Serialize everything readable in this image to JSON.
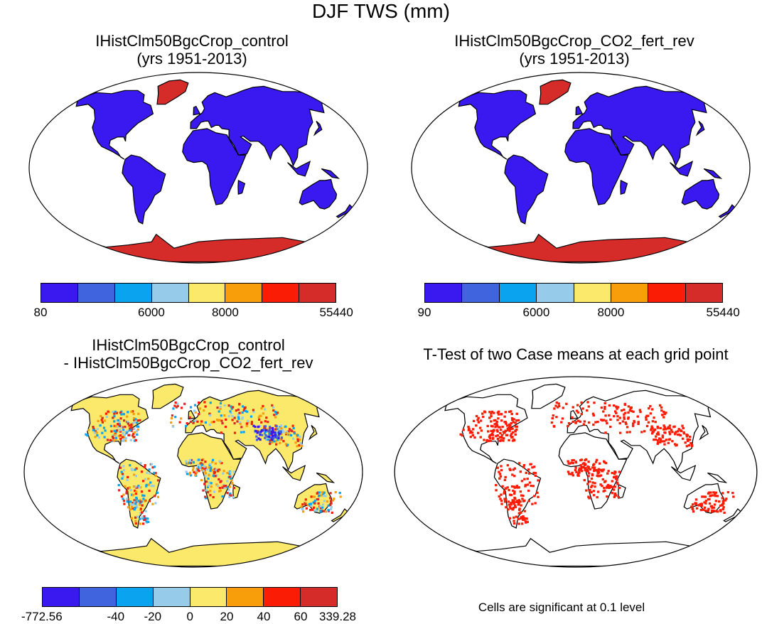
{
  "title": "DJF TWS (mm)",
  "panels": [
    {
      "id": "p1",
      "title": [
        "IHistClm50BgcCrop_control",
        "(yrs 1951-2013)"
      ],
      "mode": "abs"
    },
    {
      "id": "p2",
      "title": [
        "IHistClm50BgcCrop_CO2_fert_rev",
        "(yrs 1951-2013)"
      ],
      "mode": "abs"
    },
    {
      "id": "p3",
      "title": [
        "IHistClm50BgcCrop_control",
        "- IHistClm50BgcCrop_CO2_fert_rev"
      ],
      "mode": "diff"
    },
    {
      "id": "p4",
      "title": [
        "T-Test of two Case means at each grid point"
      ],
      "mode": "sig"
    }
  ],
  "colorbars": [
    {
      "id": "cb1",
      "colors": [
        "#3a19f0",
        "#3f64dd",
        "#0aa3f0",
        "#96cbea",
        "#fbe96b",
        "#f99e0b",
        "#fa1c05",
        "#d52b29"
      ],
      "labels": [
        {
          "text": "80",
          "at": 0
        },
        {
          "text": "6000",
          "at": 3
        },
        {
          "text": "8000",
          "at": 5
        },
        {
          "text": "55440",
          "at": 8
        }
      ]
    },
    {
      "id": "cb2",
      "colors": [
        "#3a19f0",
        "#3f64dd",
        "#0aa3f0",
        "#96cbea",
        "#fbe96b",
        "#f99e0b",
        "#fa1c05",
        "#d52b29"
      ],
      "labels": [
        {
          "text": "90",
          "at": 0
        },
        {
          "text": "6000",
          "at": 3
        },
        {
          "text": "8000",
          "at": 5
        },
        {
          "text": "55440",
          "at": 8
        }
      ]
    },
    {
      "id": "cb3",
      "colors": [
        "#3a19f0",
        "#3f64dd",
        "#0aa3f0",
        "#96cbea",
        "#fbe96b",
        "#f99e0b",
        "#fa1c05",
        "#d52b29"
      ],
      "labels": [
        {
          "text": "-772.56",
          "at": 0
        },
        {
          "text": "-40",
          "at": 2
        },
        {
          "text": "-20",
          "at": 3
        },
        {
          "text": "0",
          "at": 4
        },
        {
          "text": "20",
          "at": 5
        },
        {
          "text": "40",
          "at": 6
        },
        {
          "text": "60",
          "at": 7
        },
        {
          "text": "339.28",
          "at": 8
        }
      ]
    }
  ],
  "note": "Cells are significant at 0.1 level",
  "colors": {
    "land_abs": "#3a19f0",
    "antarctic_abs": "#d52b29",
    "land_diff": "#fbe96b",
    "significant": "#fa1c05",
    "outline": "#000000"
  }
}
